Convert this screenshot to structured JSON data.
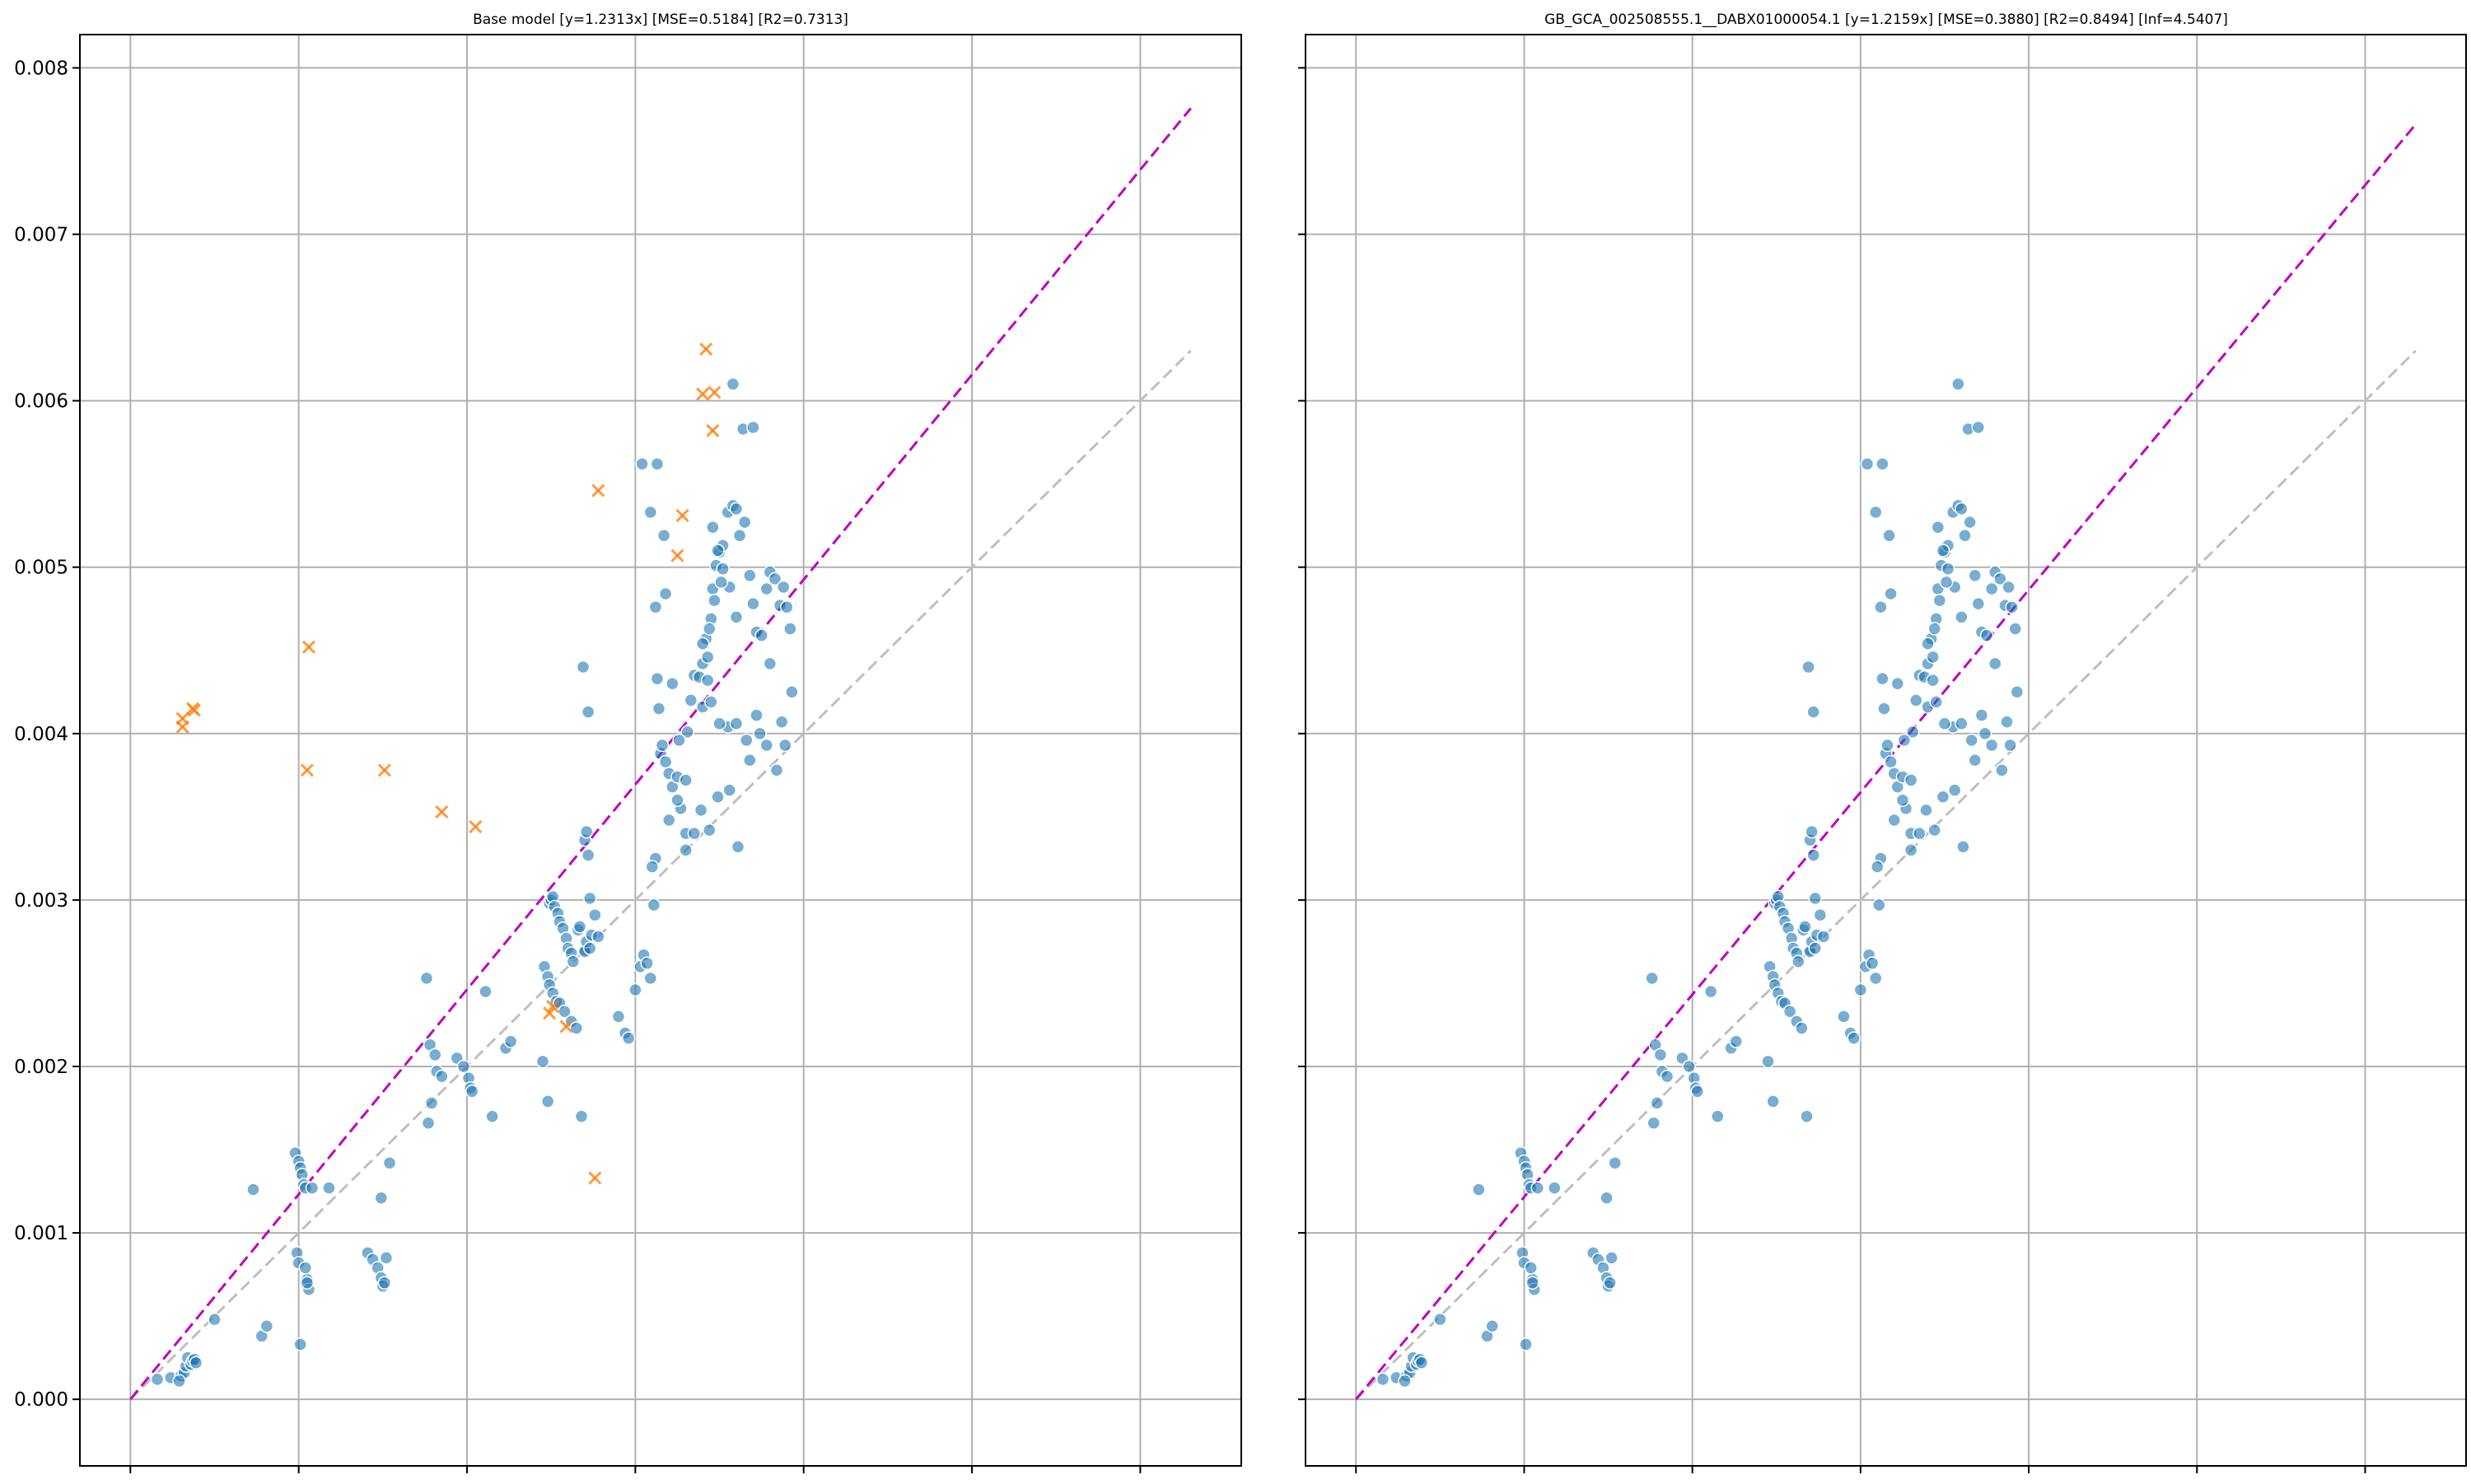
{
  "colors": {
    "point": "#1f77b4",
    "outlier": "#ff7f0e",
    "fit_line": "#bf00bf",
    "identity_line": "#bfbfbf",
    "grid": "#b0b0b0"
  },
  "y_ticks": [
    "0.000",
    "0.001",
    "0.002",
    "0.003",
    "0.004",
    "0.005",
    "0.006",
    "0.007",
    "0.008"
  ],
  "chart_data": [
    {
      "type": "scatter",
      "title": "Base model  [y=1.2313x]  [MSE=0.5184]  [R2=0.7313]",
      "xlabel": "",
      "ylabel": "",
      "xlim": [
        -0.0003,
        0.0066
      ],
      "ylim": [
        -0.0004,
        0.0082
      ],
      "x_tick_count": 7,
      "grid": true,
      "x_tick_labels_shown": false,
      "fit_slope": 1.2313,
      "fit_line_x": [
        0,
        0.0063
      ],
      "identity_line_x": [
        0,
        0.0063
      ],
      "outliers_x": [
        0.00031,
        0.00031,
        0.00038,
        0.00037,
        0.00106,
        0.00105,
        0.00151,
        0.00185,
        0.00205,
        0.00249,
        0.00251,
        0.00259,
        0.00278,
        0.00276,
        0.00325,
        0.00328,
        0.0034,
        0.00342,
        0.00347,
        0.00346
      ],
      "outliers_y": [
        0.00409,
        0.00404,
        0.00414,
        0.00415,
        0.00452,
        0.00378,
        0.00378,
        0.00353,
        0.00344,
        0.00232,
        0.00236,
        0.00224,
        0.00546,
        0.00133,
        0.00507,
        0.00531,
        0.00604,
        0.00631,
        0.00605,
        0.00582
      ],
      "points_x": [
        0.00016,
        0.00024,
        0.0003,
        0.00032,
        0.00033,
        0.00034,
        0.00036,
        0.00037,
        0.00038,
        0.00039,
        0.00029,
        0.0005,
        0.00073,
        0.00078,
        0.00081,
        0.00098,
        0.001,
        0.00101,
        0.00102,
        0.00103,
        0.00104,
        0.00105,
        0.00106,
        0.00099,
        0.001,
        0.00101,
        0.00104,
        0.00105,
        0.00108,
        0.00118,
        0.00141,
        0.00144,
        0.00147,
        0.00149,
        0.0015,
        0.00151,
        0.00154,
        0.00149,
        0.00152,
        0.00176,
        0.00177,
        0.00178,
        0.00181,
        0.00182,
        0.00185,
        0.00179,
        0.00194,
        0.00198,
        0.00201,
        0.00202,
        0.00203,
        0.00211,
        0.00215,
        0.00223,
        0.00226,
        0.00245,
        0.00248,
        0.00249,
        0.0025,
        0.00251,
        0.00252,
        0.00254,
        0.00255,
        0.00257,
        0.00259,
        0.0026,
        0.00262,
        0.00263,
        0.00246,
        0.00248,
        0.00249,
        0.00251,
        0.00253,
        0.00255,
        0.00258,
        0.00262,
        0.00265,
        0.0027,
        0.00266,
        0.00267,
        0.0027,
        0.00271,
        0.00273,
        0.00274,
        0.00276,
        0.00268,
        0.00272,
        0.00269,
        0.0027,
        0.00271,
        0.00272,
        0.00273,
        0.00278,
        0.0029,
        0.00294,
        0.00296,
        0.003,
        0.00303,
        0.00305,
        0.00307,
        0.00309,
        0.00312,
        0.0031,
        0.00311,
        0.00312,
        0.00313,
        0.00314,
        0.00315,
        0.00316,
        0.00318,
        0.0032,
        0.00322,
        0.00325,
        0.00327,
        0.0033,
        0.00331,
        0.00333,
        0.00335,
        0.00338,
        0.0034,
        0.00342,
        0.00343,
        0.00345,
        0.00346,
        0.00348,
        0.0035,
        0.00352,
        0.00355,
        0.00358,
        0.0036,
        0.00362,
        0.00365,
        0.00368,
        0.0037,
        0.00372,
        0.00375,
        0.00378,
        0.0038,
        0.00383,
        0.00386,
        0.00388,
        0.0039,
        0.00392,
        0.0034,
        0.00343,
        0.00346,
        0.00349,
        0.00352,
        0.00356,
        0.0036,
        0.00313,
        0.00318,
        0.00322,
        0.00326,
        0.0033,
        0.0032,
        0.00325,
        0.0033,
        0.00335,
        0.00339,
        0.00344,
        0.00349,
        0.00355,
        0.0036,
        0.00366,
        0.00372,
        0.00378,
        0.00384,
        0.00389,
        0.0034,
        0.00345,
        0.0035,
        0.00356,
        0.00361,
        0.00368,
        0.00374,
        0.0038,
        0.00387,
        0.00393,
        0.00344,
        0.00347,
        0.00351,
        0.00358,
        0.00364,
        0.0037,
        0.00304,
        0.00309,
        0.00317
      ],
      "points_y": [
        0.00012,
        0.00013,
        0.00014,
        0.00016,
        0.0002,
        0.00025,
        0.00021,
        0.00023,
        0.00024,
        0.00022,
        0.00011,
        0.00048,
        0.00126,
        0.00038,
        0.00044,
        0.00148,
        0.00143,
        0.00139,
        0.00135,
        0.00129,
        0.00127,
        0.00072,
        0.00066,
        0.00088,
        0.00082,
        0.00033,
        0.00079,
        0.0007,
        0.00127,
        0.00127,
        0.00088,
        0.00084,
        0.00079,
        0.00073,
        0.00068,
        0.0007,
        0.00142,
        0.00121,
        0.00085,
        0.00253,
        0.00166,
        0.00213,
        0.00207,
        0.00197,
        0.00194,
        0.00178,
        0.00205,
        0.002,
        0.00193,
        0.00187,
        0.00185,
        0.00245,
        0.0017,
        0.00211,
        0.00215,
        0.00203,
        0.00179,
        0.00298,
        0.003,
        0.00302,
        0.00296,
        0.00292,
        0.00287,
        0.00283,
        0.00277,
        0.00271,
        0.00268,
        0.00263,
        0.0026,
        0.00254,
        0.00249,
        0.00244,
        0.00239,
        0.00238,
        0.00233,
        0.00227,
        0.00223,
        0.0027,
        0.00282,
        0.00284,
        0.00269,
        0.00275,
        0.00271,
        0.00279,
        0.00291,
        0.0017,
        0.00413,
        0.0044,
        0.00336,
        0.00341,
        0.00327,
        0.00301,
        0.00278,
        0.0023,
        0.0022,
        0.00217,
        0.00246,
        0.0026,
        0.00267,
        0.00262,
        0.00253,
        0.00325,
        0.0032,
        0.00297,
        0.00476,
        0.00433,
        0.00415,
        0.00388,
        0.00393,
        0.00383,
        0.00376,
        0.00368,
        0.00374,
        0.00355,
        0.0034,
        0.00401,
        0.0042,
        0.00435,
        0.00434,
        0.00442,
        0.00457,
        0.00432,
        0.00469,
        0.00487,
        0.00501,
        0.00509,
        0.00513,
        0.00533,
        0.00537,
        0.00535,
        0.00519,
        0.00527,
        0.00495,
        0.00478,
        0.00461,
        0.00459,
        0.00487,
        0.00497,
        0.00493,
        0.00477,
        0.00488,
        0.00476,
        0.00463,
        0.00454,
        0.00446,
        0.00524,
        0.0051,
        0.00499,
        0.00488,
        0.0047,
        0.00562,
        0.00484,
        0.0043,
        0.00396,
        0.00372,
        0.00348,
        0.0036,
        0.0033,
        0.0034,
        0.00354,
        0.00342,
        0.00362,
        0.00404,
        0.00406,
        0.00396,
        0.00411,
        0.00393,
        0.00378,
        0.00393,
        0.00416,
        0.00419,
        0.00406,
        0.00366,
        0.00332,
        0.00384,
        0.004,
        0.00442,
        0.00407,
        0.00425,
        0.00463,
        0.0048,
        0.00491,
        0.0061,
        0.00583,
        0.00584,
        0.00562,
        0.00533,
        0.00519,
        0.00434,
        0.00436,
        0.00438
      ]
    },
    {
      "type": "scatter",
      "title": "GB_GCA_002508555.1__DABX01000054.1  [y=1.2159x]  [MSE=0.3880]  [R2=0.8494]  [Inf=4.5407]",
      "xlabel": "",
      "ylabel": "",
      "xlim": [
        -0.0003,
        0.0066
      ],
      "ylim": [
        -0.0004,
        0.0082
      ],
      "x_tick_count": 7,
      "grid": true,
      "x_tick_labels_shown": false,
      "fit_slope": 1.2159,
      "fit_line_x": [
        0,
        0.0063
      ],
      "identity_line_x": [
        0,
        0.0063
      ],
      "outliers_x": [],
      "outliers_y": [],
      "points_x": [
        0.00016,
        0.00024,
        0.0003,
        0.00032,
        0.00033,
        0.00034,
        0.00036,
        0.00037,
        0.00038,
        0.00039,
        0.00029,
        0.0005,
        0.00073,
        0.00078,
        0.00081,
        0.00098,
        0.001,
        0.00101,
        0.00102,
        0.00103,
        0.00104,
        0.00105,
        0.00106,
        0.00099,
        0.001,
        0.00101,
        0.00104,
        0.00105,
        0.00108,
        0.00118,
        0.00141,
        0.00144,
        0.00147,
        0.00149,
        0.0015,
        0.00151,
        0.00154,
        0.00149,
        0.00152,
        0.00176,
        0.00177,
        0.00178,
        0.00181,
        0.00182,
        0.00185,
        0.00179,
        0.00194,
        0.00198,
        0.00201,
        0.00202,
        0.00203,
        0.00211,
        0.00215,
        0.00223,
        0.00226,
        0.00245,
        0.00248,
        0.00249,
        0.0025,
        0.00251,
        0.00252,
        0.00254,
        0.00255,
        0.00257,
        0.00259,
        0.0026,
        0.00262,
        0.00263,
        0.00246,
        0.00248,
        0.00249,
        0.00251,
        0.00253,
        0.00255,
        0.00258,
        0.00262,
        0.00265,
        0.0027,
        0.00266,
        0.00267,
        0.0027,
        0.00271,
        0.00273,
        0.00274,
        0.00276,
        0.00268,
        0.00272,
        0.00269,
        0.0027,
        0.00271,
        0.00272,
        0.00273,
        0.00278,
        0.0029,
        0.00294,
        0.00296,
        0.003,
        0.00303,
        0.00305,
        0.00307,
        0.00309,
        0.00312,
        0.0031,
        0.00311,
        0.00312,
        0.00313,
        0.00314,
        0.00315,
        0.00316,
        0.00318,
        0.0032,
        0.00322,
        0.00325,
        0.00327,
        0.0033,
        0.00331,
        0.00333,
        0.00335,
        0.00338,
        0.0034,
        0.00342,
        0.00343,
        0.00345,
        0.00346,
        0.00348,
        0.0035,
        0.00352,
        0.00355,
        0.00358,
        0.0036,
        0.00362,
        0.00365,
        0.00368,
        0.0037,
        0.00372,
        0.00375,
        0.00378,
        0.0038,
        0.00383,
        0.00386,
        0.00388,
        0.0039,
        0.00392,
        0.0034,
        0.00343,
        0.00346,
        0.00349,
        0.00352,
        0.00356,
        0.0036,
        0.00313,
        0.00318,
        0.00322,
        0.00326,
        0.0033,
        0.0032,
        0.00325,
        0.0033,
        0.00335,
        0.00339,
        0.00344,
        0.00349,
        0.00355,
        0.0036,
        0.00366,
        0.00372,
        0.00378,
        0.00384,
        0.00389,
        0.0034,
        0.00345,
        0.0035,
        0.00356,
        0.00361,
        0.00368,
        0.00374,
        0.0038,
        0.00387,
        0.00393,
        0.00344,
        0.00347,
        0.00351,
        0.00358,
        0.00364,
        0.0037,
        0.00304,
        0.00309,
        0.00317
      ],
      "points_y": [
        0.00012,
        0.00013,
        0.00014,
        0.00016,
        0.0002,
        0.00025,
        0.00021,
        0.00023,
        0.00024,
        0.00022,
        0.00011,
        0.00048,
        0.00126,
        0.00038,
        0.00044,
        0.00148,
        0.00143,
        0.00139,
        0.00135,
        0.00129,
        0.00127,
        0.00072,
        0.00066,
        0.00088,
        0.00082,
        0.00033,
        0.00079,
        0.0007,
        0.00127,
        0.00127,
        0.00088,
        0.00084,
        0.00079,
        0.00073,
        0.00068,
        0.0007,
        0.00142,
        0.00121,
        0.00085,
        0.00253,
        0.00166,
        0.00213,
        0.00207,
        0.00197,
        0.00194,
        0.00178,
        0.00205,
        0.002,
        0.00193,
        0.00187,
        0.00185,
        0.00245,
        0.0017,
        0.00211,
        0.00215,
        0.00203,
        0.00179,
        0.00298,
        0.003,
        0.00302,
        0.00296,
        0.00292,
        0.00287,
        0.00283,
        0.00277,
        0.00271,
        0.00268,
        0.00263,
        0.0026,
        0.00254,
        0.00249,
        0.00244,
        0.00239,
        0.00238,
        0.00233,
        0.00227,
        0.00223,
        0.0027,
        0.00282,
        0.00284,
        0.00269,
        0.00275,
        0.00271,
        0.00279,
        0.00291,
        0.0017,
        0.00413,
        0.0044,
        0.00336,
        0.00341,
        0.00327,
        0.00301,
        0.00278,
        0.0023,
        0.0022,
        0.00217,
        0.00246,
        0.0026,
        0.00267,
        0.00262,
        0.00253,
        0.00325,
        0.0032,
        0.00297,
        0.00476,
        0.00433,
        0.00415,
        0.00388,
        0.00393,
        0.00383,
        0.00376,
        0.00368,
        0.00374,
        0.00355,
        0.0034,
        0.00401,
        0.0042,
        0.00435,
        0.00434,
        0.00442,
        0.00457,
        0.00432,
        0.00469,
        0.00487,
        0.00501,
        0.00509,
        0.00513,
        0.00533,
        0.00537,
        0.00535,
        0.00519,
        0.00527,
        0.00495,
        0.00478,
        0.00461,
        0.00459,
        0.00487,
        0.00497,
        0.00493,
        0.00477,
        0.00488,
        0.00476,
        0.00463,
        0.00454,
        0.00446,
        0.00524,
        0.0051,
        0.00499,
        0.00488,
        0.0047,
        0.00562,
        0.00484,
        0.0043,
        0.00396,
        0.00372,
        0.00348,
        0.0036,
        0.0033,
        0.0034,
        0.00354,
        0.00342,
        0.00362,
        0.00404,
        0.00406,
        0.00396,
        0.00411,
        0.00393,
        0.00378,
        0.00393,
        0.00416,
        0.00419,
        0.00406,
        0.00366,
        0.00332,
        0.00384,
        0.004,
        0.00442,
        0.00407,
        0.00425,
        0.00463,
        0.0048,
        0.00491,
        0.0061,
        0.00583,
        0.00584,
        0.00562,
        0.00533,
        0.00519,
        0.00434,
        0.00436,
        0.00438
      ]
    }
  ]
}
